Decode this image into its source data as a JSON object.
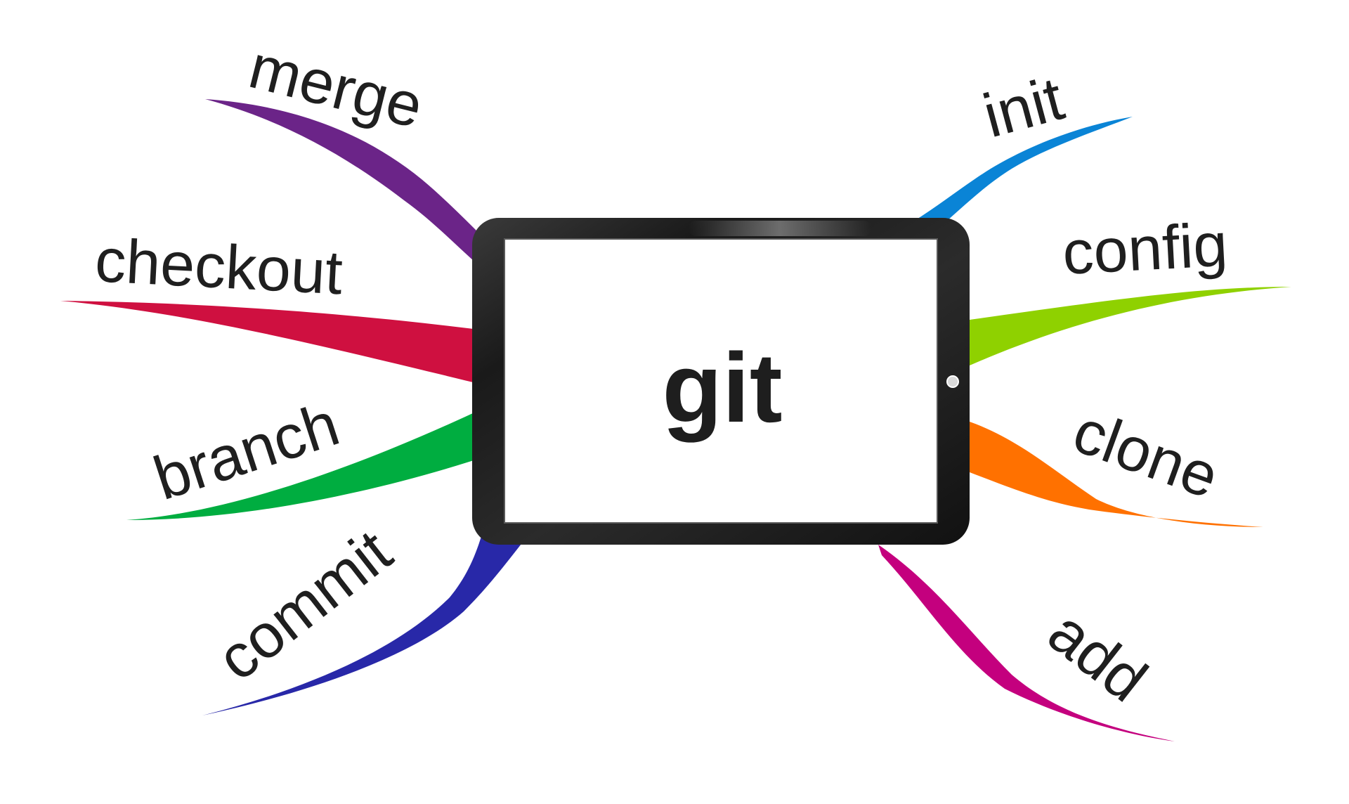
{
  "center": {
    "label": "git"
  },
  "branches": {
    "merge": {
      "label": "merge",
      "color": "#6b2488"
    },
    "checkout": {
      "label": "checkout",
      "color": "#cf1040"
    },
    "branch": {
      "label": "branch",
      "color": "#00ad40"
    },
    "commit": {
      "label": "commit",
      "color": "#2828a8"
    },
    "init": {
      "label": "init",
      "color": "#0a84d6"
    },
    "config": {
      "label": "config",
      "color": "#8fd100"
    },
    "clone": {
      "label": "clone",
      "color": "#ff7100"
    },
    "add": {
      "label": "add",
      "color": "#c4007e"
    }
  }
}
